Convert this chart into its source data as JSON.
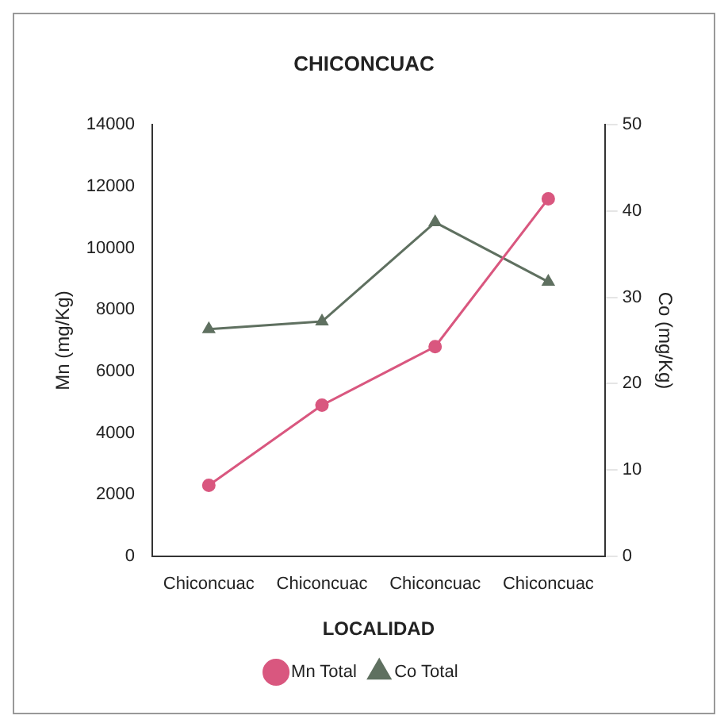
{
  "chart_data": {
    "type": "line",
    "title": "CHICONCUAC",
    "xlabel": "LOCALIDAD",
    "ylabel": "Mn (mg/Kg)",
    "y2label": "Co (mg/Kg)",
    "categories": [
      "Chiconcuac",
      "Chiconcuac",
      "Chiconcuac",
      "Chiconcuac"
    ],
    "series": [
      {
        "name": "Mn Total",
        "color": "#d9577f",
        "values": [
          2300,
          4900,
          6800,
          11600
        ],
        "marker": "circle"
      },
      {
        "name": "Co Total",
        "color": "#5f7060",
        "values": [
          26.3,
          27.2,
          38.7,
          31.8
        ],
        "axis": "y2",
        "marker": "triangle"
      }
    ],
    "ylim": [
      0,
      14000
    ],
    "yticks": [
      0,
      2000,
      4000,
      6000,
      8000,
      10000,
      12000,
      14000
    ],
    "y2lim": [
      0,
      50
    ],
    "y2ticks": [
      0,
      10,
      20,
      30,
      40,
      50
    ],
    "grid": false,
    "legend": "bottom",
    "line_style": "solid"
  }
}
